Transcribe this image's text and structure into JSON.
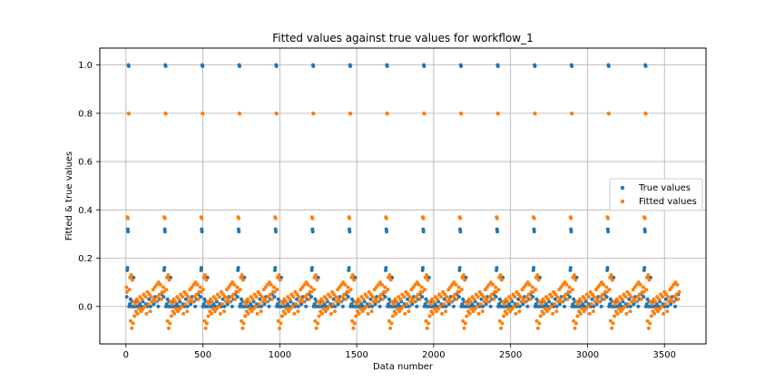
{
  "chart_data": {
    "type": "scatter",
    "title": "Fitted values against true values for workflow_1",
    "xlabel": "Data number",
    "ylabel": "Fitted & true values",
    "xlim": [
      -170,
      3770
    ],
    "ylim": [
      -0.155,
      1.07
    ],
    "xticks": [
      0,
      500,
      1000,
      1500,
      2000,
      2500,
      3000,
      3500
    ],
    "yticks": [
      0.0,
      0.2,
      0.4,
      0.6,
      0.8,
      1.0
    ],
    "ytick_labels": [
      "0.0",
      "0.2",
      "0.4",
      "0.6",
      "0.8",
      "1.0"
    ],
    "grid": true,
    "legend_position": "center-right",
    "period": 240,
    "cycles": 15,
    "series": [
      {
        "name": "True values",
        "color": "#1f77b4",
        "pattern": [
          {
            "offset": 5,
            "y": 0.04
          },
          {
            "offset": 8,
            "y": 0.15
          },
          {
            "offset": 10,
            "y": 0.16
          },
          {
            "offset": 12,
            "y": 0.32
          },
          {
            "offset": 14,
            "y": 0.31
          },
          {
            "offset": 16,
            "y": 1.0
          },
          {
            "offset": 18,
            "y": 0.995
          },
          {
            "offset": 20,
            "y": 0.0
          },
          {
            "offset": 25,
            "y": 0.01
          },
          {
            "offset": 30,
            "y": 0.03
          },
          {
            "offset": 35,
            "y": 0.0
          },
          {
            "offset": 40,
            "y": 0.02
          },
          {
            "offset": 45,
            "y": 0.0
          },
          {
            "offset": 50,
            "y": 0.12
          },
          {
            "offset": 55,
            "y": 0.0
          },
          {
            "offset": 60,
            "y": 0.01
          },
          {
            "offset": 65,
            "y": 0.0
          },
          {
            "offset": 70,
            "y": 0.02
          },
          {
            "offset": 75,
            "y": 0.0
          },
          {
            "offset": 80,
            "y": 0.0
          },
          {
            "offset": 90,
            "y": 0.01
          },
          {
            "offset": 100,
            "y": 0.0
          },
          {
            "offset": 110,
            "y": 0.02
          },
          {
            "offset": 120,
            "y": 0.0
          },
          {
            "offset": 130,
            "y": 0.01
          },
          {
            "offset": 140,
            "y": 0.0
          },
          {
            "offset": 150,
            "y": 0.03
          },
          {
            "offset": 160,
            "y": 0.0
          },
          {
            "offset": 170,
            "y": 0.02
          },
          {
            "offset": 180,
            "y": 0.01
          },
          {
            "offset": 190,
            "y": 0.04
          },
          {
            "offset": 200,
            "y": 0.02
          },
          {
            "offset": 210,
            "y": 0.0
          },
          {
            "offset": 220,
            "y": 0.03
          },
          {
            "offset": 230,
            "y": 0.05
          }
        ]
      },
      {
        "name": "Fitted values",
        "color": "#ff7f0e",
        "pattern": [
          {
            "offset": 3,
            "y": 0.08
          },
          {
            "offset": 6,
            "y": 0.06
          },
          {
            "offset": 9,
            "y": 0.37
          },
          {
            "offset": 13,
            "y": 0.365
          },
          {
            "offset": 17,
            "y": 0.8
          },
          {
            "offset": 19,
            "y": 0.798
          },
          {
            "offset": 22,
            "y": 0.07
          },
          {
            "offset": 26,
            "y": 0.12
          },
          {
            "offset": 30,
            "y": -0.06
          },
          {
            "offset": 34,
            "y": 0.13
          },
          {
            "offset": 38,
            "y": -0.09
          },
          {
            "offset": 42,
            "y": 0.11
          },
          {
            "offset": 46,
            "y": -0.07
          },
          {
            "offset": 50,
            "y": 0.02
          },
          {
            "offset": 55,
            "y": -0.04
          },
          {
            "offset": 60,
            "y": 0.01
          },
          {
            "offset": 65,
            "y": -0.02
          },
          {
            "offset": 70,
            "y": 0.03
          },
          {
            "offset": 75,
            "y": -0.03
          },
          {
            "offset": 80,
            "y": 0.02
          },
          {
            "offset": 86,
            "y": -0.01
          },
          {
            "offset": 92,
            "y": 0.04
          },
          {
            "offset": 98,
            "y": -0.02
          },
          {
            "offset": 104,
            "y": 0.03
          },
          {
            "offset": 110,
            "y": -0.01
          },
          {
            "offset": 116,
            "y": 0.05
          },
          {
            "offset": 122,
            "y": 0.0
          },
          {
            "offset": 128,
            "y": 0.04
          },
          {
            "offset": 134,
            "y": -0.03
          },
          {
            "offset": 140,
            "y": 0.06
          },
          {
            "offset": 146,
            "y": 0.01
          },
          {
            "offset": 152,
            "y": 0.05
          },
          {
            "offset": 158,
            "y": -0.02
          },
          {
            "offset": 164,
            "y": 0.04
          },
          {
            "offset": 170,
            "y": 0.02
          },
          {
            "offset": 176,
            "y": 0.07
          },
          {
            "offset": 182,
            "y": 0.03
          },
          {
            "offset": 188,
            "y": 0.08
          },
          {
            "offset": 194,
            "y": 0.02
          },
          {
            "offset": 200,
            "y": 0.09
          },
          {
            "offset": 206,
            "y": 0.04
          },
          {
            "offset": 212,
            "y": 0.1
          },
          {
            "offset": 218,
            "y": 0.05
          },
          {
            "offset": 224,
            "y": 0.09
          },
          {
            "offset": 230,
            "y": 0.03
          },
          {
            "offset": 236,
            "y": 0.06
          }
        ]
      }
    ]
  }
}
